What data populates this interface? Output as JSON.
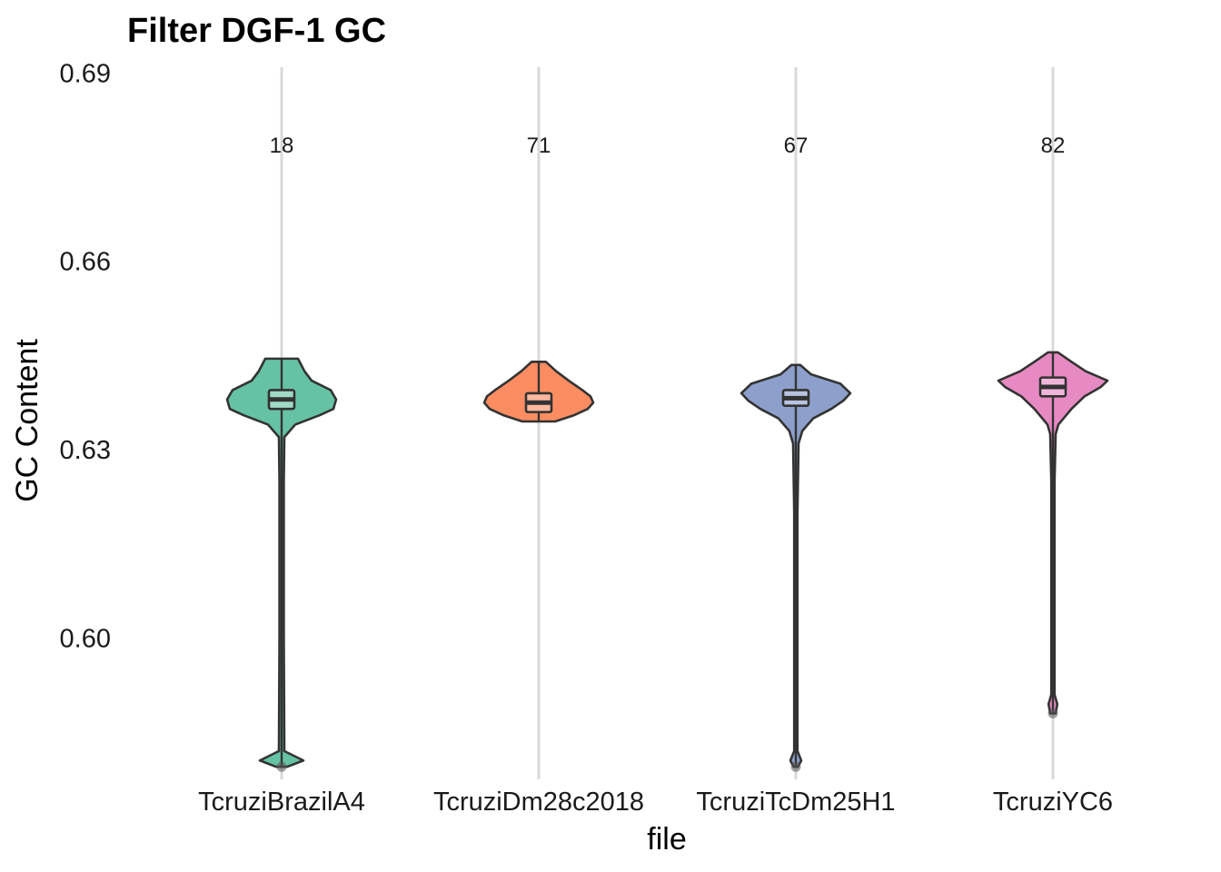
{
  "chart_data": {
    "type": "violin",
    "title": "Filter DGF-1 GC",
    "xlabel": "file",
    "ylabel": "GC Content",
    "ylim": [
      0.5775,
      0.6915
    ],
    "yticks": [
      0.6,
      0.63,
      0.66,
      0.69
    ],
    "ytick_labels": [
      "0.60",
      "0.63",
      "0.66",
      "0.69"
    ],
    "grid": "vertical major lines only",
    "legend": "none",
    "categories": [
      "TcruziBrazilA4",
      "TcruziDm28c2018",
      "TcruziTcDm25H1",
      "TcruziYC6"
    ],
    "counts": [
      18,
      71,
      67,
      82
    ],
    "count_label_y": 0.6785,
    "series": [
      {
        "category": "TcruziBrazilA4",
        "color": "#66c2a5",
        "n": 18,
        "min": 0.5795,
        "q1": 0.6365,
        "median": 0.638,
        "q3": 0.6395,
        "max": 0.6445,
        "density": [
          [
            0.5795,
            0.1
          ],
          [
            0.5805,
            0.4
          ],
          [
            0.582,
            0.05
          ],
          [
            0.6,
            0.04
          ],
          [
            0.625,
            0.04
          ],
          [
            0.632,
            0.05
          ],
          [
            0.634,
            0.25
          ],
          [
            0.6355,
            0.7
          ],
          [
            0.6365,
            0.95
          ],
          [
            0.638,
            1.0
          ],
          [
            0.6395,
            0.9
          ],
          [
            0.641,
            0.55
          ],
          [
            0.6425,
            0.42
          ],
          [
            0.6445,
            0.3
          ]
        ],
        "outliers": [
          0.5795
        ]
      },
      {
        "category": "TcruziDm28c2018",
        "color": "#fc8d62",
        "n": 71,
        "min": 0.6345,
        "q1": 0.636,
        "median": 0.6375,
        "q3": 0.639,
        "max": 0.644,
        "density": [
          [
            0.6345,
            0.3
          ],
          [
            0.6355,
            0.65
          ],
          [
            0.6365,
            0.9
          ],
          [
            0.6375,
            1.0
          ],
          [
            0.6385,
            0.95
          ],
          [
            0.6395,
            0.8
          ],
          [
            0.641,
            0.55
          ],
          [
            0.6425,
            0.32
          ],
          [
            0.644,
            0.13
          ]
        ],
        "outliers": []
      },
      {
        "category": "TcruziTcDm25H1",
        "color": "#8da0cb",
        "n": 67,
        "min": 0.5795,
        "q1": 0.637,
        "median": 0.6382,
        "q3": 0.6395,
        "max": 0.6435,
        "density": [
          [
            0.5795,
            0.04
          ],
          [
            0.5805,
            0.1
          ],
          [
            0.582,
            0.03
          ],
          [
            0.62,
            0.03
          ],
          [
            0.631,
            0.05
          ],
          [
            0.633,
            0.12
          ],
          [
            0.635,
            0.32
          ],
          [
            0.6365,
            0.65
          ],
          [
            0.6378,
            0.87
          ],
          [
            0.639,
            1.0
          ],
          [
            0.6405,
            0.82
          ],
          [
            0.642,
            0.28
          ],
          [
            0.6435,
            0.08
          ]
        ],
        "outliers": [
          0.5795
        ]
      },
      {
        "category": "TcruziYC6",
        "color": "#e78ac3",
        "n": 82,
        "min": 0.588,
        "q1": 0.6385,
        "median": 0.64,
        "q3": 0.6415,
        "max": 0.6455,
        "density": [
          [
            0.588,
            0.05
          ],
          [
            0.5895,
            0.08
          ],
          [
            0.591,
            0.03
          ],
          [
            0.625,
            0.03
          ],
          [
            0.6325,
            0.05
          ],
          [
            0.634,
            0.1
          ],
          [
            0.6365,
            0.34
          ],
          [
            0.6385,
            0.58
          ],
          [
            0.64,
            0.88
          ],
          [
            0.641,
            1.0
          ],
          [
            0.6425,
            0.6
          ],
          [
            0.644,
            0.34
          ],
          [
            0.6455,
            0.09
          ]
        ],
        "outliers": [
          0.588
        ]
      }
    ]
  }
}
